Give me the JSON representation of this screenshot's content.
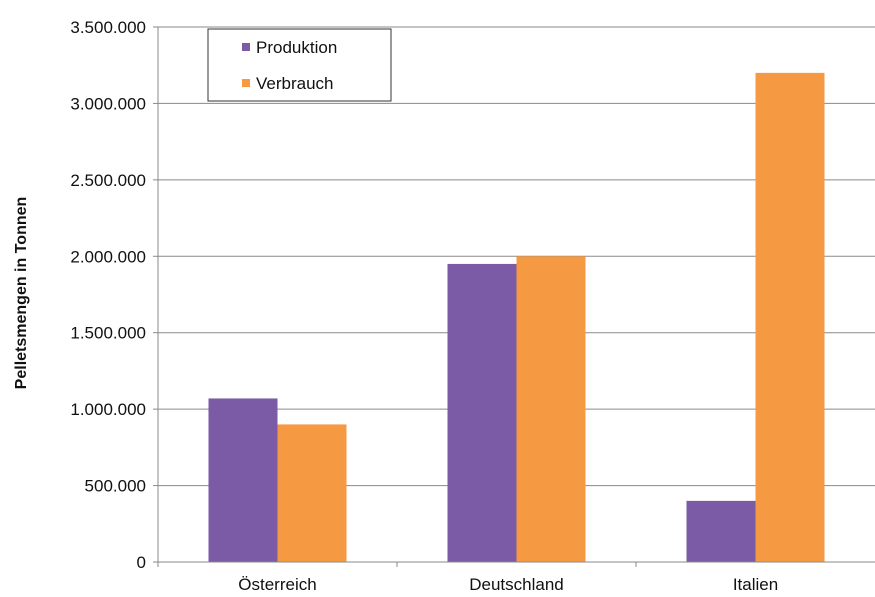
{
  "chart_data": {
    "type": "bar",
    "categories": [
      "Österreich",
      "Deutschland",
      "Italien"
    ],
    "series": [
      {
        "name": "Produktion",
        "values": [
          1070000,
          1950000,
          400000
        ],
        "color": "#7b5aa6"
      },
      {
        "name": "Verbrauch",
        "values": [
          900000,
          2000000,
          3200000
        ],
        "color": "#f59a42"
      }
    ],
    "title": "",
    "xlabel": "",
    "ylabel": "Pelletsmengen in Tonnen",
    "ylim": [
      0,
      3500000
    ],
    "yticks": [
      0,
      500000,
      1000000,
      1500000,
      2000000,
      2500000,
      3000000,
      3500000
    ],
    "ytick_labels": [
      "0",
      "500.000",
      "1.000.000",
      "1.500.000",
      "2.000.000",
      "2.500.000",
      "3.000.000",
      "3.500.000"
    ],
    "grid": true,
    "legend_position": "top-left"
  }
}
